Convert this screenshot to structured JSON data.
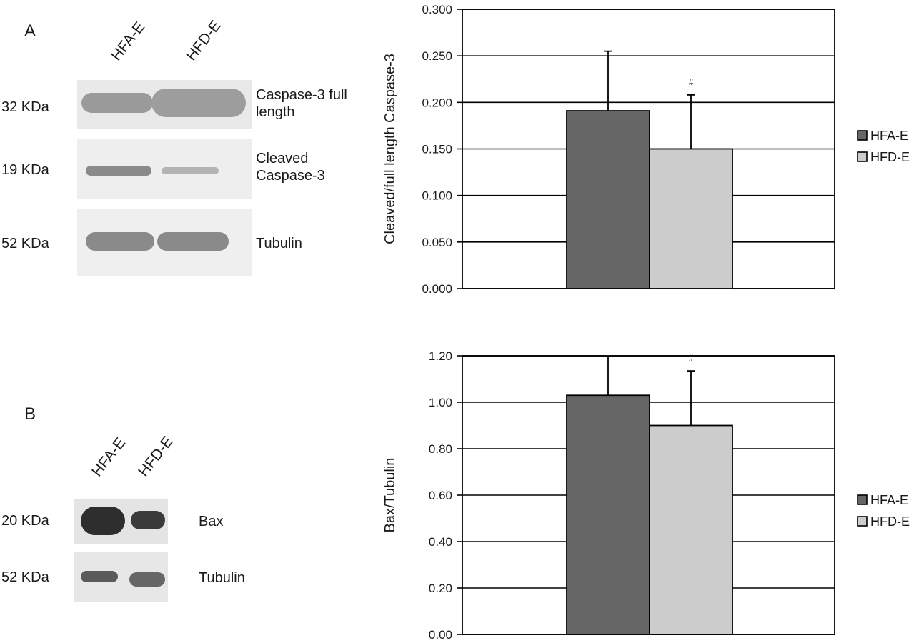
{
  "panelA": {
    "letter": "A",
    "lanes": [
      "HFA-E",
      "HFD-E"
    ],
    "rows": [
      {
        "kda": "32 KDa",
        "label_lines": [
          "Caspase-3 full",
          "length"
        ]
      },
      {
        "kda": "19 KDa",
        "label_lines": [
          "Cleaved",
          "Caspase-3"
        ]
      },
      {
        "kda": "52 KDa",
        "label_lines": [
          "Tubulin"
        ]
      }
    ]
  },
  "panelB": {
    "letter": "B",
    "lanes": [
      "HFA-E",
      "HFD-E"
    ],
    "rows": [
      {
        "kda": "20 KDa",
        "label_lines": [
          "Bax"
        ]
      },
      {
        "kda": "52 KDa",
        "label_lines": [
          "Tubulin"
        ]
      }
    ]
  },
  "colors": {
    "hfa": "#666666",
    "hfd": "#cccccc",
    "axis": "#000000"
  },
  "chart_data": [
    {
      "type": "bar",
      "ylabel": "Cleaved/full length Caspase-3",
      "ylim": [
        0,
        0.3
      ],
      "yticks": [
        "0.000",
        "0.050",
        "0.100",
        "0.150",
        "0.200",
        "0.250",
        "0.300"
      ],
      "grid": true,
      "legend_position": "right",
      "series": [
        {
          "name": "HFA-E",
          "values": [
            0.191
          ],
          "error": [
            0.064
          ],
          "marker": ""
        },
        {
          "name": "HFD-E",
          "values": [
            0.15
          ],
          "error": [
            0.058
          ],
          "marker": "#"
        }
      ]
    },
    {
      "type": "bar",
      "ylabel": "Bax/Tubulin",
      "ylim": [
        0,
        1.2
      ],
      "yticks": [
        "0.00",
        "0.20",
        "0.40",
        "0.60",
        "0.80",
        "1.00",
        "1.20"
      ],
      "grid": true,
      "legend_position": "right",
      "series": [
        {
          "name": "HFA-E",
          "values": [
            1.03
          ],
          "error": [
            0.2
          ],
          "marker": ""
        },
        {
          "name": "HFD-E",
          "values": [
            0.9
          ],
          "error": [
            0.235
          ],
          "marker": "#"
        }
      ]
    }
  ]
}
